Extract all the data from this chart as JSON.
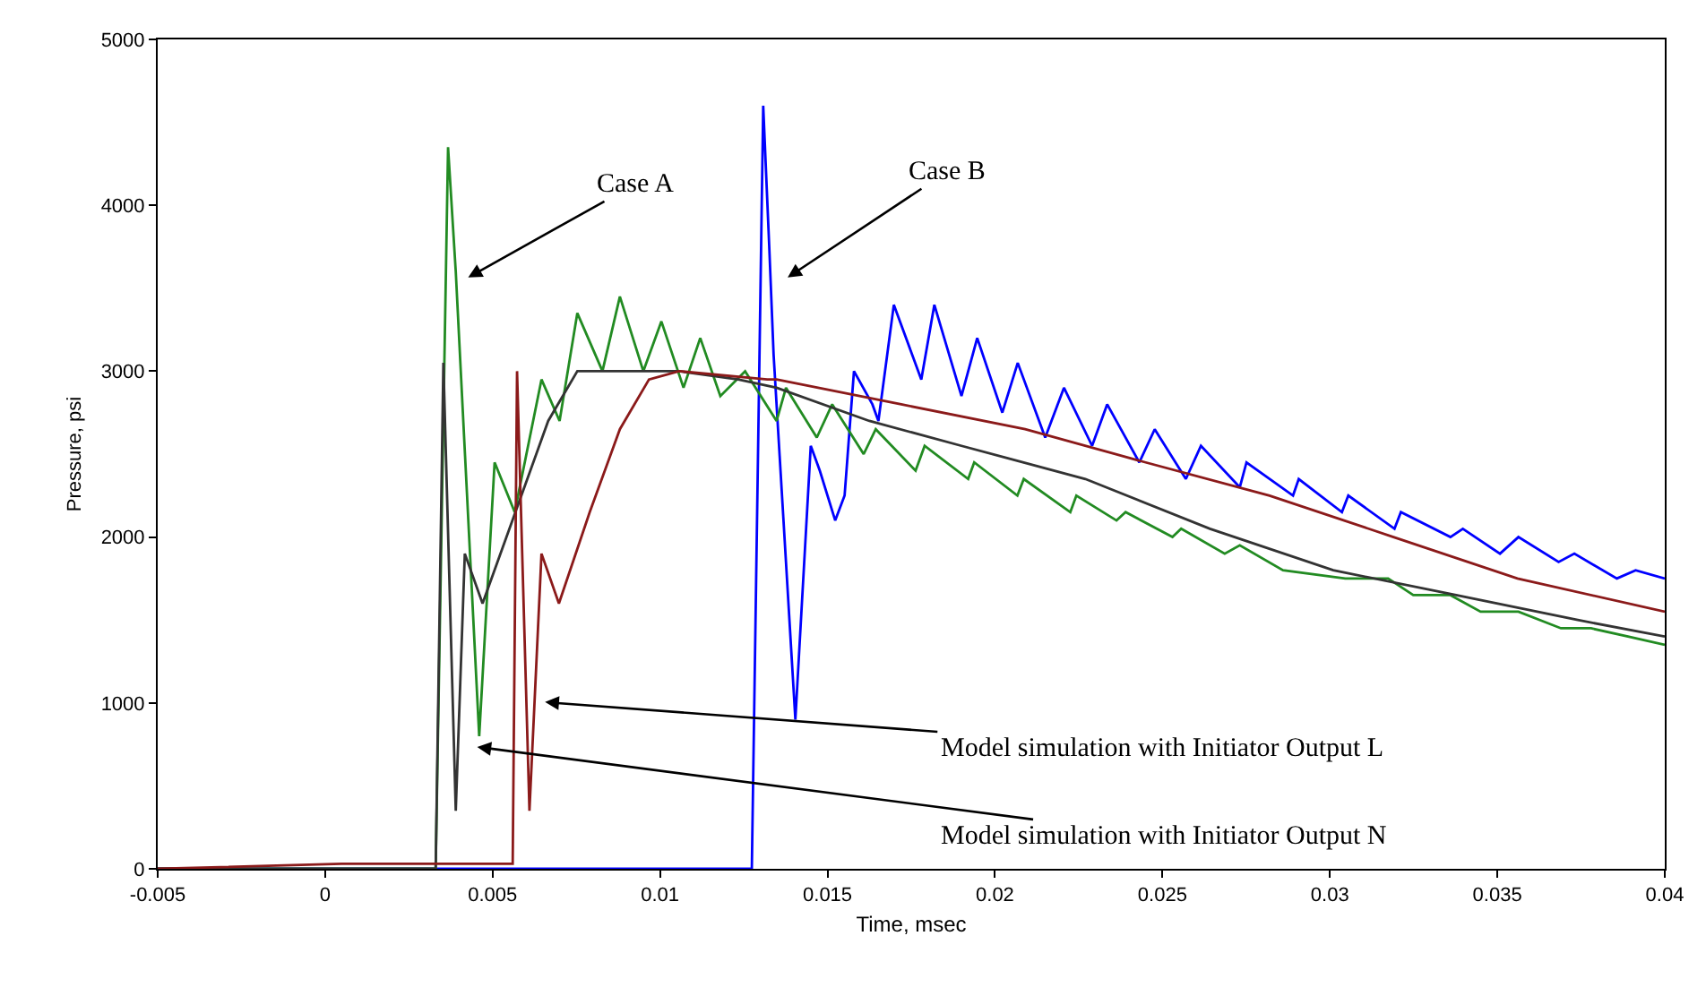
{
  "chart_data": {
    "type": "line",
    "xlabel": "Time, msec",
    "ylabel": "Pressure, psi",
    "xlim": [
      -0.005,
      0.04
    ],
    "xticks": [
      -0.005,
      0,
      0.005,
      0.01,
      0.015,
      0.02,
      0.025,
      0.03,
      0.035,
      0.04
    ],
    "ylim": [
      0,
      5000
    ],
    "yticks": [
      0,
      1000,
      2000,
      3000,
      4000,
      5000
    ],
    "marker": "none",
    "line_style": "solid",
    "annotations": [
      "Case A",
      "Case B",
      "Model simulation with Initiator Output L",
      "Model simulation with Initiator Output N"
    ],
    "series": [
      {
        "color": "#0000ff",
        "x": [
          -0.005,
          0.01274,
          0.01308,
          0.01326,
          0.01339,
          0.01404,
          0.0145,
          0.01477,
          0.01523,
          0.01551,
          0.01579,
          0.01634,
          0.01652,
          0.01698,
          0.0178,
          0.01819,
          0.019,
          0.01947,
          0.02022,
          0.02068,
          0.0215,
          0.02206,
          0.0229,
          0.02335,
          0.02431,
          0.02477,
          0.0257,
          0.02615,
          0.02731,
          0.02751,
          0.0289,
          0.02907,
          0.03036,
          0.03055,
          0.03193,
          0.03212,
          0.0336,
          0.03397,
          0.03508,
          0.03563,
          0.03683,
          0.0373,
          0.03857,
          0.03913,
          0.04
        ],
        "values": [
          0,
          0,
          4600,
          3750,
          3100,
          900,
          2550,
          2400,
          2100,
          2250,
          3000,
          2800,
          2700,
          3400,
          2950,
          3400,
          2850,
          3200,
          2750,
          3050,
          2600,
          2900,
          2550,
          2800,
          2450,
          2650,
          2350,
          2550,
          2300,
          2450,
          2250,
          2350,
          2150,
          2250,
          2050,
          2150,
          2000,
          2050,
          1900,
          2000,
          1850,
          1900,
          1750,
          1800,
          1750
        ]
      },
      {
        "color": "#228b22",
        "x": [
          -0.005,
          0.0033,
          0.00367,
          0.0039,
          0.0046,
          0.00506,
          0.00566,
          0.00646,
          0.007,
          0.00753,
          0.00828,
          0.0088,
          0.0095,
          0.01004,
          0.0107,
          0.0112,
          0.0118,
          0.01254,
          0.01348,
          0.01376,
          0.01468,
          0.01514,
          0.01608,
          0.01644,
          0.01763,
          0.0179,
          0.0192,
          0.01938,
          0.02067,
          0.02086,
          0.02225,
          0.02243,
          0.02363,
          0.0239,
          0.0253,
          0.02556,
          0.02686,
          0.02731,
          0.0286,
          0.03046,
          0.03174,
          0.03249,
          0.0336,
          0.0345,
          0.03563,
          0.0369,
          0.0378,
          0.0389,
          0.04
        ],
        "values": [
          0,
          0,
          4350,
          3600,
          800,
          2450,
          2150,
          2950,
          2700,
          3350,
          3000,
          3450,
          3000,
          3300,
          2900,
          3200,
          2850,
          3000,
          2700,
          2900,
          2600,
          2800,
          2500,
          2650,
          2400,
          2550,
          2350,
          2450,
          2250,
          2350,
          2150,
          2250,
          2100,
          2150,
          2000,
          2050,
          1900,
          1950,
          1800,
          1750,
          1750,
          1650,
          1650,
          1550,
          1550,
          1450,
          1450,
          1400,
          1350
        ]
      },
      {
        "color": "#333333",
        "x": [
          -0.005,
          0.0033,
          0.00353,
          0.0039,
          0.00417,
          0.0047,
          0.00577,
          0.00666,
          0.00753,
          0.0088,
          0.01057,
          0.01233,
          0.01348,
          0.01625,
          0.019,
          0.0227,
          0.02642,
          0.0301,
          0.03377,
          0.0374,
          0.04
        ],
        "values": [
          0,
          0,
          3050,
          350,
          1900,
          1600,
          2200,
          2700,
          3000,
          3000,
          3000,
          2950,
          2900,
          2700,
          2550,
          2350,
          2050,
          1800,
          1650,
          1500,
          1400
        ]
      },
      {
        "color": "#8b1a1a",
        "x": [
          -0.005,
          0.0005,
          0.0056,
          0.00573,
          0.0061,
          0.00646,
          0.00698,
          0.0079,
          0.0088,
          0.00967,
          0.01057,
          0.0132,
          0.01348,
          0.0172,
          0.0209,
          0.0245,
          0.0282,
          0.0319,
          0.0356,
          0.04
        ],
        "values": [
          0,
          30,
          30,
          3000,
          350,
          1900,
          1600,
          2150,
          2650,
          2950,
          3000,
          2950,
          2950,
          2800,
          2650,
          2450,
          2250,
          2000,
          1750,
          1550
        ]
      }
    ]
  }
}
